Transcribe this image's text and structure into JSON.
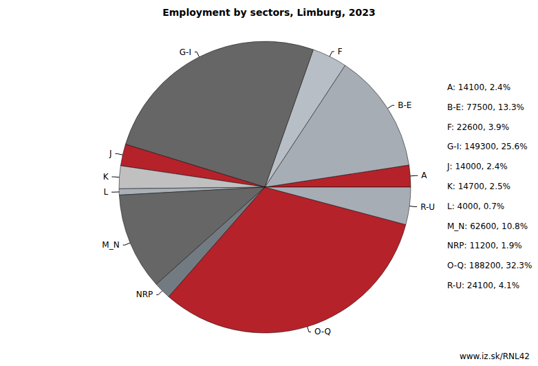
{
  "chart_data": {
    "type": "pie",
    "title": "Employment by sectors, Limburg, 2023",
    "categories": [
      "A",
      "B-E",
      "F",
      "G-I",
      "J",
      "K",
      "L",
      "M_N",
      "NRP",
      "O-Q",
      "R-U"
    ],
    "values": [
      14100,
      77500,
      22600,
      149300,
      14000,
      14700,
      4000,
      62600,
      11200,
      188200,
      24100
    ],
    "value_labels": [
      "A: 14100, 2.4%",
      "B-E: 77500, 13.3%",
      "F: 22600, 3.9%",
      "G-I: 149300, 25.6%",
      "J: 14000, 2.4%",
      "K: 14700, 2.5%",
      "L: 4000, 0.7%",
      "M_N: 62600, 10.8%",
      "NRP: 11200, 1.9%",
      "O-Q: 188200, 32.3%",
      "R-U: 24100, 4.1%"
    ],
    "colors": [
      "#b5222a",
      "#a6adb5",
      "#b8bec6",
      "#666666",
      "#b5222a",
      "#c0c0c0",
      "#a9b0b8",
      "#666666",
      "#737b82",
      "#b5222a",
      "#a6adb5"
    ],
    "source": "www.iz.sk/RNL42"
  }
}
